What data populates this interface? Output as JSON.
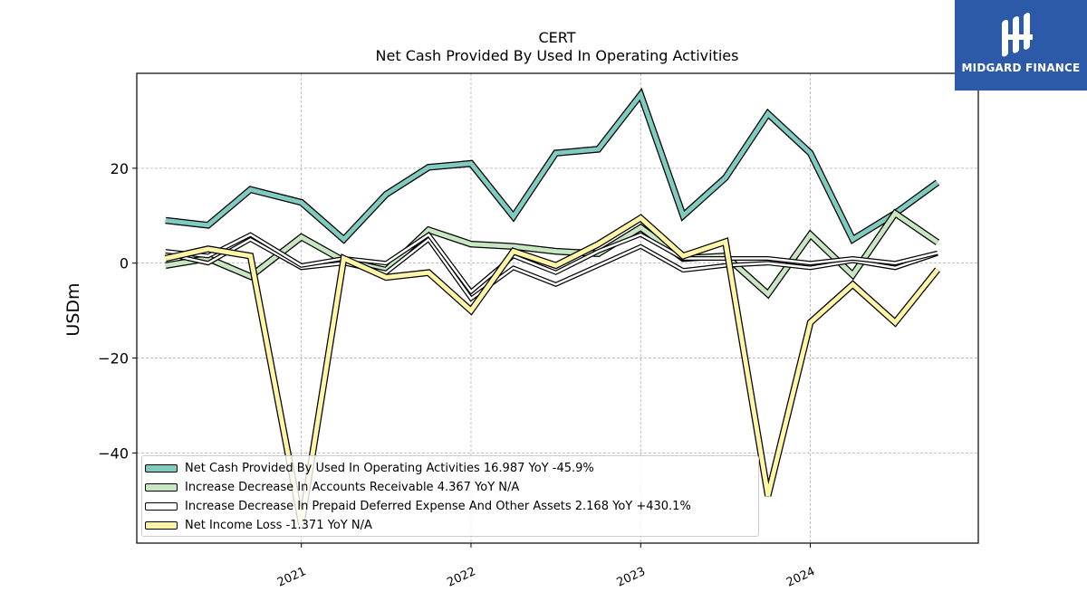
{
  "chart_data": {
    "type": "line",
    "title": "CERT",
    "subtitle": "Net Cash Provided By Used In Operating Activities",
    "ylabel": "USDm",
    "xlabel": "",
    "ylim": [
      -59,
      40
    ],
    "xlim": [
      2020.03,
      2024.99
    ],
    "yticks": [
      -40,
      -20,
      0,
      20
    ],
    "ytick_labels": [
      "−40",
      "−20",
      "0",
      "20"
    ],
    "xticks": [
      2021,
      2022,
      2023,
      2024
    ],
    "xtick_labels": [
      "2021",
      "2022",
      "2023",
      "2024"
    ],
    "grid": true,
    "legend_position": "bottom-left",
    "x": [
      2020.2,
      2020.45,
      2020.7,
      2021.0,
      2021.25,
      2021.5,
      2021.75,
      2022.0,
      2022.25,
      2022.5,
      2022.75,
      2023.0,
      2023.25,
      2023.5,
      2023.75,
      2024.0,
      2024.25,
      2024.5,
      2024.75
    ],
    "series": [
      {
        "name": "Net Cash Provided By Used In Operating Activities",
        "legend": "Net Cash Provided By Used In Operating Activities  16.987 YoY -45.9%",
        "color": "#80cbc0",
        "values": [
          9.0,
          8.0,
          15.5,
          12.8,
          5.0,
          14.5,
          20.2,
          21.0,
          9.8,
          23.2,
          24.0,
          35.5,
          10.0,
          18.0,
          31.5,
          23.2,
          5.0,
          10.5,
          16.987
        ]
      },
      {
        "name": "Increase Decrease In Accounts Receivable",
        "legend": "Increase Decrease In Accounts Receivable  4.367 YoY N/A",
        "color": "#c7e6c1",
        "values": [
          -0.5,
          1.0,
          -2.8,
          5.5,
          0.5,
          -1.5,
          7.0,
          4.0,
          3.5,
          2.5,
          2.0,
          7.5,
          1.0,
          1.5,
          -6.5,
          6.0,
          -2.5,
          10.5,
          4.367
        ]
      },
      {
        "name": "Increase Decrease In Prepaid Deferred Expense And Other Assets",
        "legend": "Increase Decrease In Prepaid Deferred Expense And Other Assets  2.168 YoY +430.1%",
        "color": "#ffffff",
        "values": [
          2.5,
          1.5,
          6.0,
          -0.5,
          1.0,
          0.0,
          6.0,
          -6.0,
          1.5,
          -2.0,
          2.5,
          6.0,
          1.0,
          1.0,
          1.0,
          0.0,
          1.0,
          0.0,
          2.168
        ]
      },
      {
        "name": "Net Income Loss",
        "legend": "Net Income Loss  -1.371 YoY N/A",
        "color": "#fef5a6",
        "values": [
          1.0,
          3.0,
          1.5,
          -55.0,
          1.0,
          -3.0,
          -2.0,
          -10.0,
          2.5,
          -0.5,
          4.0,
          9.5,
          1.5,
          4.5,
          -49.0,
          -12.5,
          -4.5,
          -12.5,
          -1.371
        ]
      },
      {
        "name": "Increase Decrease In Prepaid Deferred Expense And Other Assets",
        "legend": "",
        "color": "#ffffff",
        "values": [
          2.0,
          0.0,
          5.0,
          -1.0,
          0.0,
          -2.0,
          5.0,
          -7.5,
          -1.0,
          -4.5,
          -0.5,
          3.5,
          -1.5,
          -0.5,
          0.0,
          -1.0,
          0.5,
          -1.0,
          2.0
        ]
      }
    ]
  },
  "logo": {
    "text": "MIDGARD FINANCE",
    "bg": "#2c5aa8"
  }
}
